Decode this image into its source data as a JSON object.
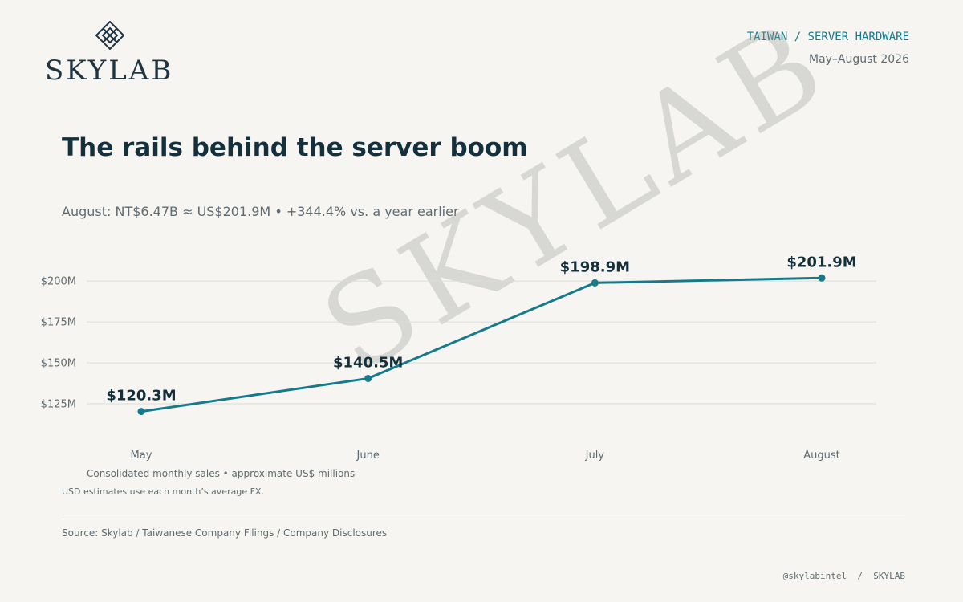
{
  "brand": {
    "name": "SKYLAB",
    "icon": "diamond-lattice-icon"
  },
  "header": {
    "kicker": "TAIWAN / SERVER HARDWARE",
    "period": "May–August 2026"
  },
  "headline": {
    "title": "The rails behind the server boom",
    "subtitle": "August: NT$6.47B ≈ US$201.9M • +344.4% vs. a year earlier"
  },
  "watermark": "SKYLAB",
  "chart_data": {
    "type": "line",
    "categories": [
      "May",
      "June",
      "July",
      "August"
    ],
    "values": [
      120.3,
      140.5,
      198.9,
      201.9
    ],
    "data_labels": [
      "$120.3M",
      "$140.5M",
      "$198.9M",
      "$201.9M"
    ],
    "y_ticks": [
      125,
      150,
      175,
      200
    ],
    "y_tick_labels": [
      "$125M",
      "$150M",
      "$175M",
      "$200M"
    ],
    "ylim": [
      100,
      204
    ],
    "grid": true,
    "color": "#177a8a"
  },
  "notes": {
    "unit_note": "Consolidated monthly sales • approximate US$ millions",
    "fx_note": "USD estimates use each month’s average FX."
  },
  "source": "Source: Skylab / Taiwanese Company Filings / Company Disclosures",
  "footer": "@skylabintel  /  SKYLAB",
  "colors": {
    "background": "#f6f5f1",
    "ink": "#14303d",
    "accent": "#177a8a",
    "muted": "#5f6b72"
  }
}
